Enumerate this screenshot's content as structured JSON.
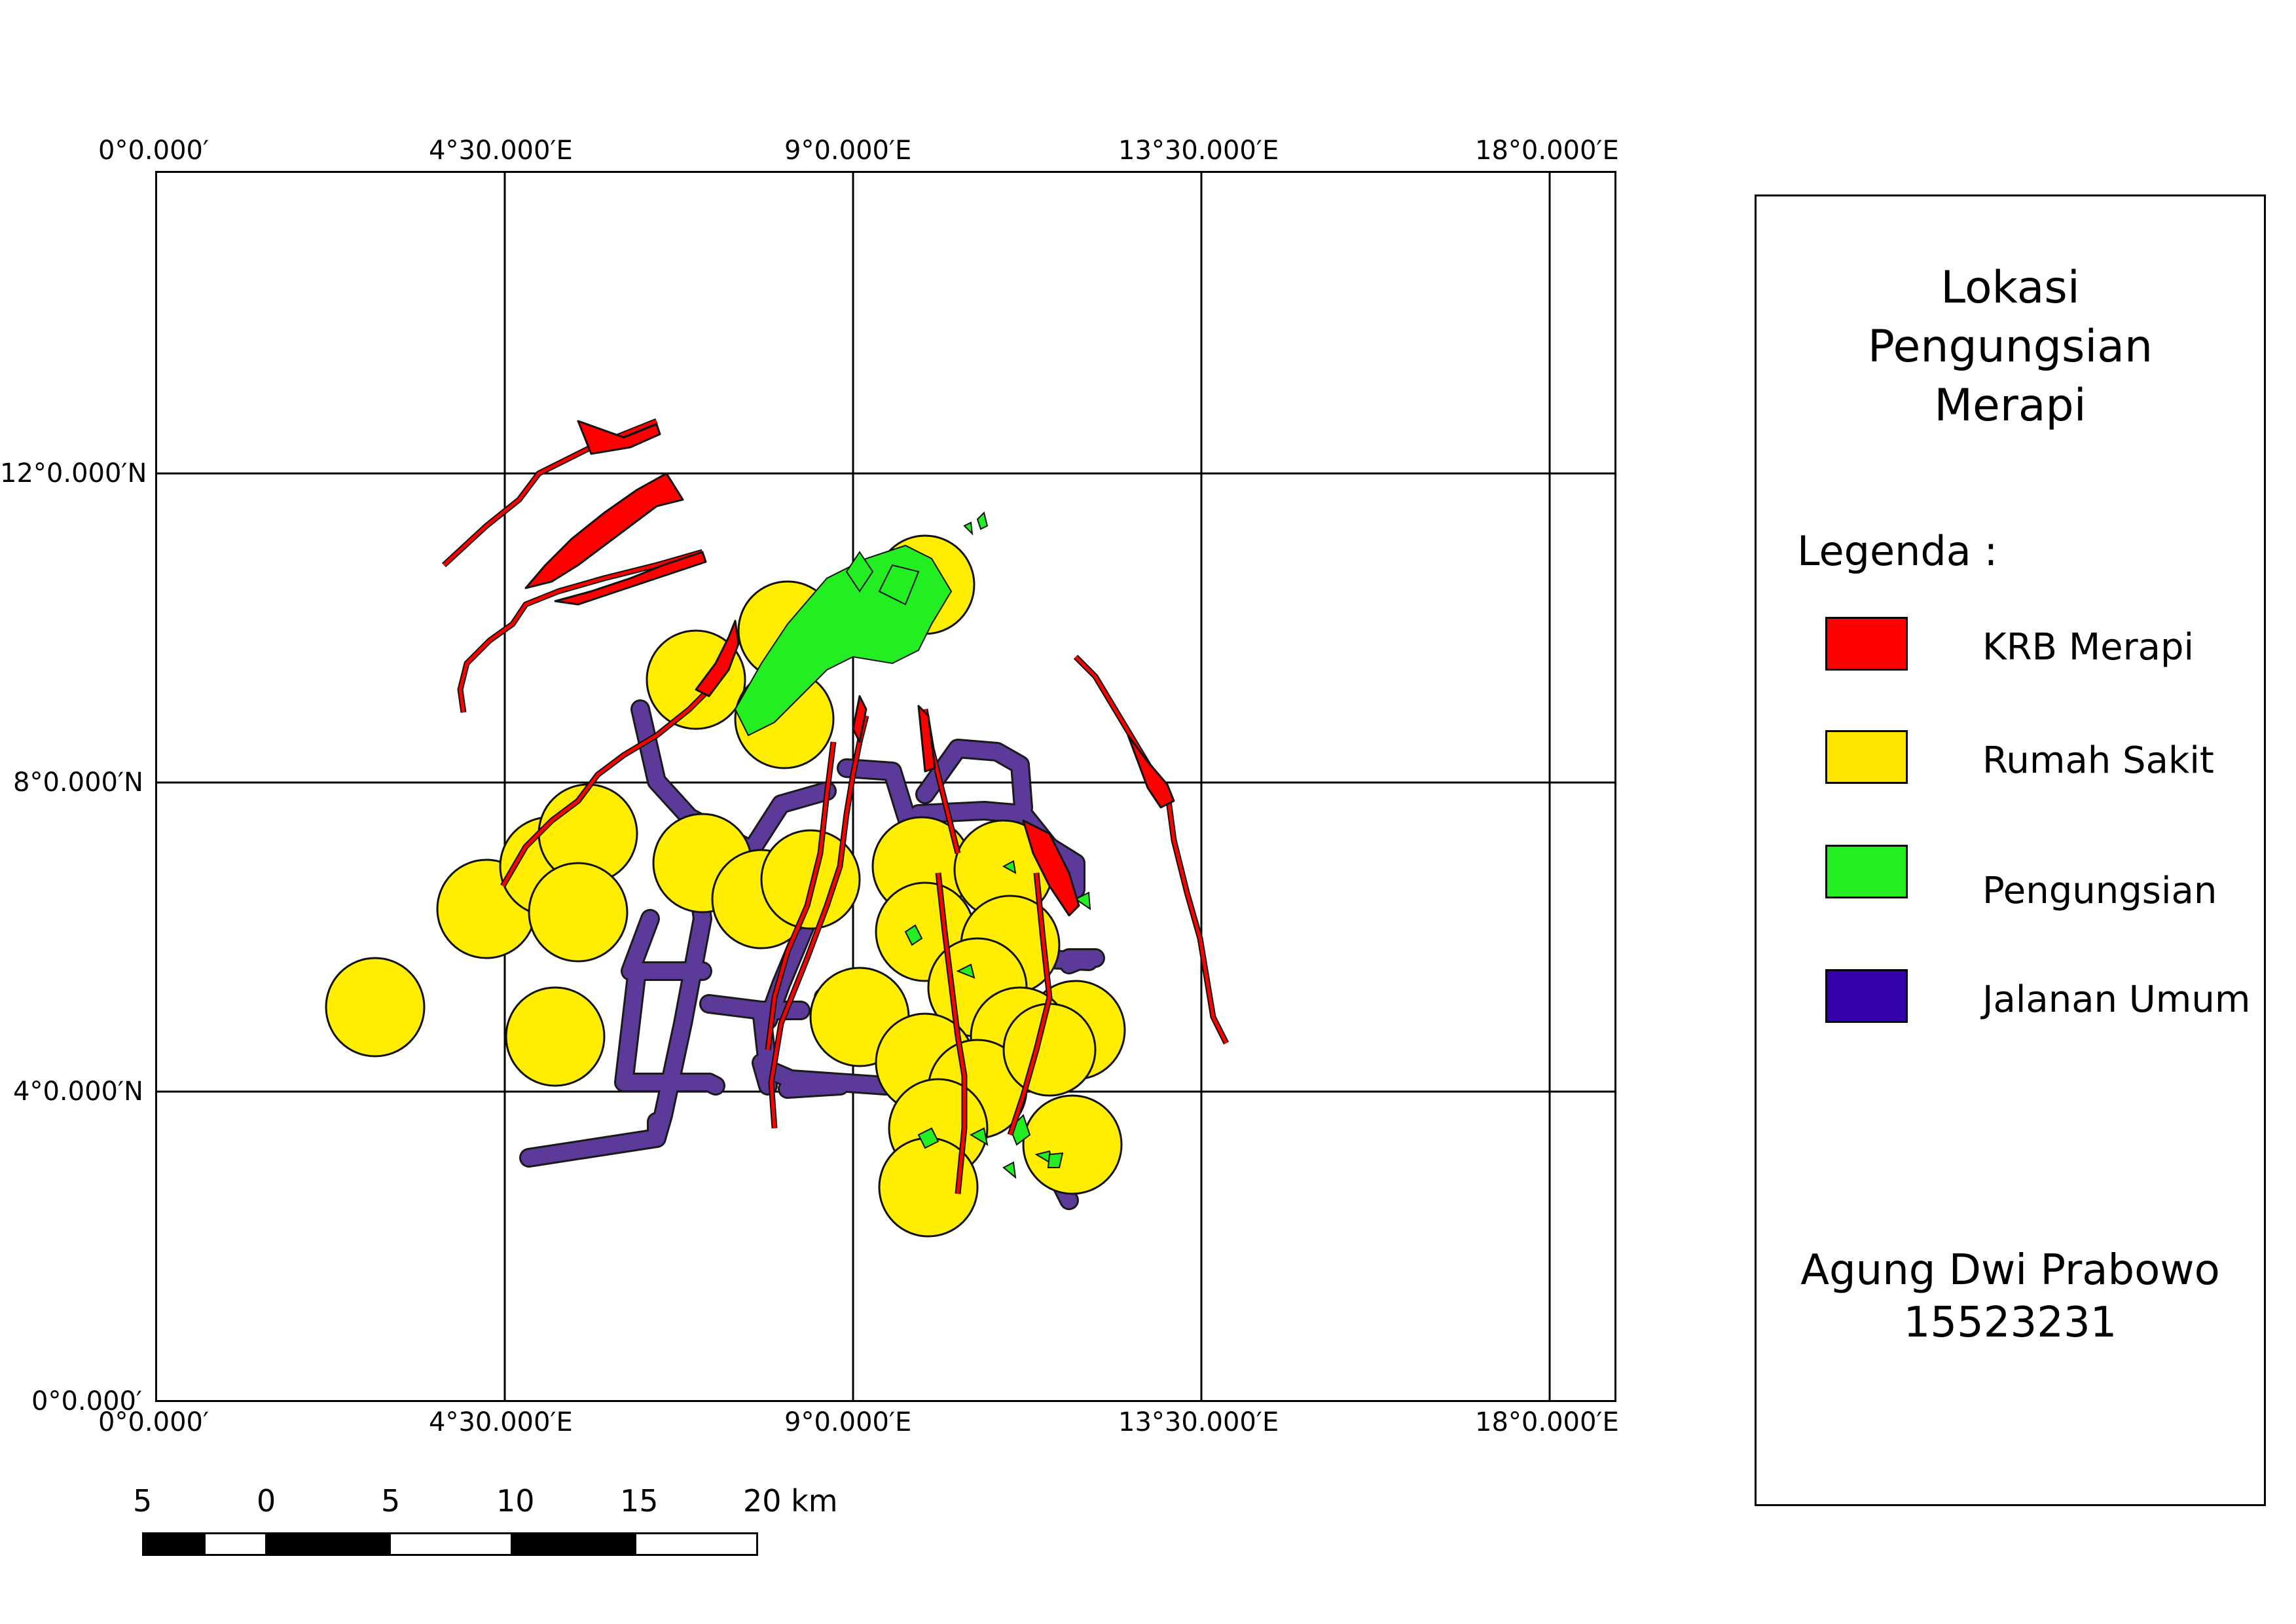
{
  "map": {
    "top_longitude_labels": [
      "0°0.000′",
      "4°30.000′E",
      "9°0.000′E",
      "13°30.000′E",
      "18°0.000′E"
    ],
    "bottom_longitude_labels": [
      "0°0.000′",
      "4°30.000′E",
      "9°0.000′E",
      "13°30.000′E",
      "18°0.000′E"
    ],
    "latitude_labels": [
      "12°0.000′N",
      "8°0.000′N",
      "4°0.000′N",
      "0°0.000′"
    ]
  },
  "legend": {
    "title": [
      "Lokasi",
      "Pengungsian",
      "Merapi"
    ],
    "heading": "Legenda :",
    "items": [
      {
        "label": "KRB Merapi",
        "color": "#ff0000"
      },
      {
        "label": "Rumah Sakit",
        "color": "#ffe600"
      },
      {
        "label": "Pengungsian",
        "color": "#22ee22"
      },
      {
        "label": "Jalanan Umum",
        "color": "#3300aa"
      }
    ],
    "author_name": "Agung Dwi Prabowo",
    "author_id": "15523231"
  },
  "scalebar": {
    "labels": [
      "5",
      "0",
      "5",
      "10",
      "15",
      "20 km"
    ]
  },
  "colors": {
    "krb": "#ff0000",
    "hospital": "#ffee00",
    "refugee": "#22ee22",
    "road": "#5b3a9a",
    "grid": "#000000"
  }
}
